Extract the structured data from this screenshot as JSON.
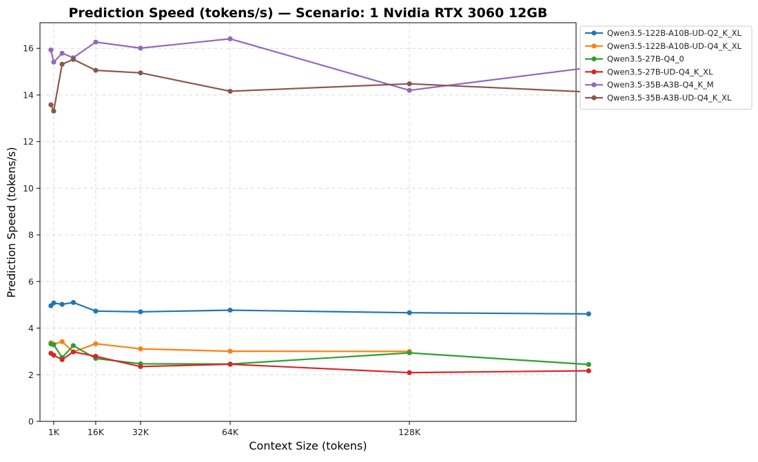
{
  "chart_data": {
    "type": "line",
    "title": "Prediction Speed (tokens/s) — Scenario: 1 Nvidia RTX 3060 12GB",
    "xlabel": "Context Size (tokens)",
    "ylabel": "Prediction Speed (tokens/s)",
    "xlim": [
      -4000,
      192000
    ],
    "ylim": [
      0,
      17.1
    ],
    "xticks": [
      {
        "value": 1024,
        "label": "1K"
      },
      {
        "value": 16384,
        "label": "16K"
      },
      {
        "value": 32768,
        "label": "32K"
      },
      {
        "value": 65536,
        "label": "64K"
      },
      {
        "value": 131072,
        "label": "128K"
      }
    ],
    "yticks": [
      0,
      2,
      4,
      6,
      8,
      10,
      12,
      14,
      16
    ],
    "grid": true,
    "legend_position": "outside-top-right",
    "series": [
      {
        "name": "Qwen3.5-122B-A10B-UD-Q2_K_XL",
        "color": "#1f77b4",
        "points": [
          [
            0,
            4.96
          ],
          [
            1024,
            5.08
          ],
          [
            4096,
            5.02
          ],
          [
            8192,
            5.1
          ],
          [
            16384,
            4.73
          ],
          [
            32768,
            4.7
          ],
          [
            65536,
            4.77
          ],
          [
            131072,
            4.66
          ],
          [
            196608,
            4.61
          ]
        ]
      },
      {
        "name": "Qwen3.5-122B-A10B-UD-Q4_K_XL",
        "color": "#ff7f0e",
        "points": [
          [
            0,
            3.37
          ],
          [
            1024,
            3.31
          ],
          [
            4096,
            3.42
          ],
          [
            8192,
            2.98
          ],
          [
            16384,
            3.33
          ],
          [
            32768,
            3.11
          ],
          [
            65536,
            3.01
          ],
          [
            131072,
            3.0
          ]
        ]
      },
      {
        "name": "Qwen3.5-27B-Q4_0",
        "color": "#2ca02c",
        "points": [
          [
            0,
            3.32
          ],
          [
            1024,
            3.29
          ],
          [
            4096,
            2.74
          ],
          [
            8192,
            3.25
          ],
          [
            16384,
            2.7
          ],
          [
            32768,
            2.47
          ],
          [
            65536,
            2.46
          ],
          [
            131072,
            2.94
          ],
          [
            196608,
            2.44
          ]
        ]
      },
      {
        "name": "Qwen3.5-27B-UD-Q4_K_XL",
        "color": "#d62728",
        "points": [
          [
            0,
            2.92
          ],
          [
            1024,
            2.84
          ],
          [
            4096,
            2.65
          ],
          [
            8192,
            2.98
          ],
          [
            16384,
            2.79
          ],
          [
            32768,
            2.35
          ],
          [
            65536,
            2.45
          ],
          [
            131072,
            2.09
          ],
          [
            196608,
            2.17
          ]
        ]
      },
      {
        "name": "Qwen3.5-35B-A3B-Q4_K_M",
        "color": "#9467bd",
        "points": [
          [
            0,
            15.93
          ],
          [
            1024,
            15.41
          ],
          [
            4096,
            15.79
          ],
          [
            8192,
            15.6
          ],
          [
            16384,
            16.27
          ],
          [
            32768,
            16.01
          ],
          [
            65536,
            16.41
          ],
          [
            131072,
            14.2
          ],
          [
            196608,
            15.17
          ]
        ]
      },
      {
        "name": "Qwen3.5-35B-A3B-UD-Q4_K_XL",
        "color": "#8c564b",
        "points": [
          [
            0,
            13.58
          ],
          [
            1024,
            13.31
          ],
          [
            4096,
            15.32
          ],
          [
            8192,
            15.53
          ],
          [
            16384,
            15.06
          ],
          [
            32768,
            14.95
          ],
          [
            65536,
            14.16
          ],
          [
            131072,
            14.48
          ],
          [
            196608,
            14.13
          ]
        ]
      }
    ]
  }
}
